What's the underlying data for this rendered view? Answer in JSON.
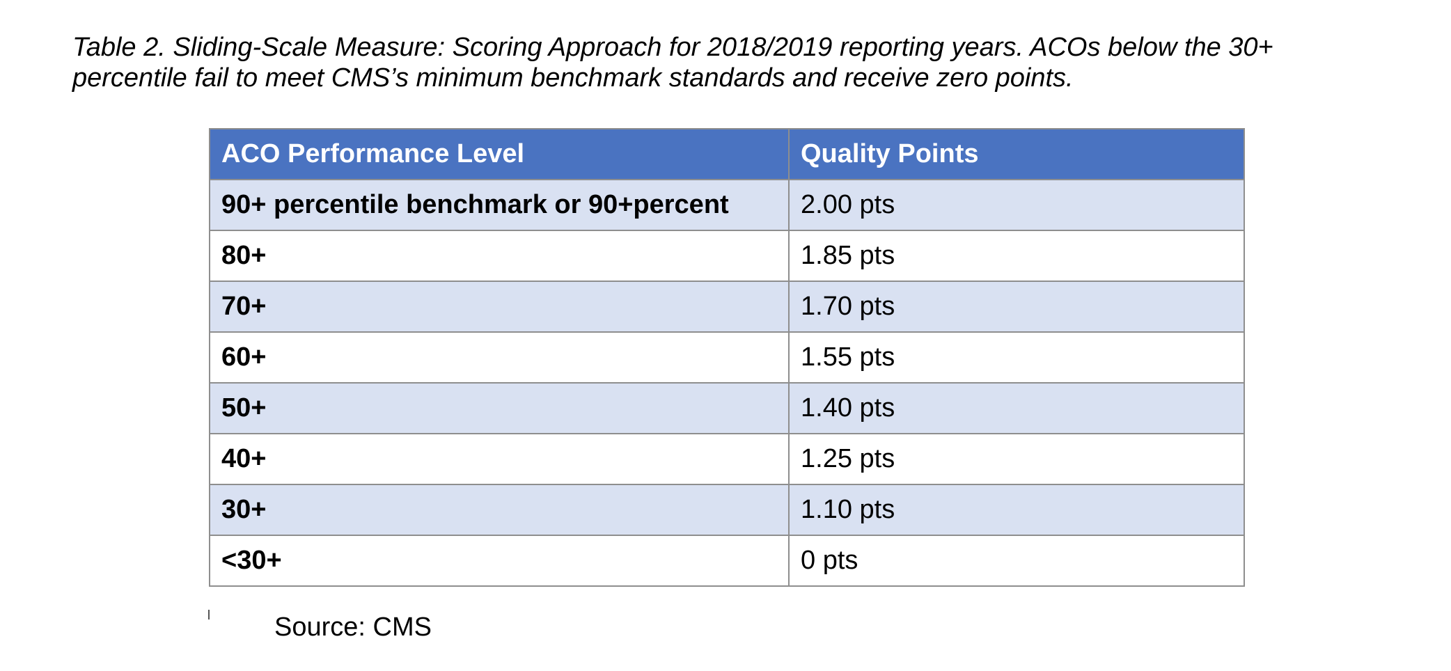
{
  "caption": "Table 2. Sliding-Scale Measure: Scoring Approach for 2018/2019 reporting years. ACOs below the 30+ percentile fail to meet CMS’s minimum benchmark standards and receive zero points.",
  "table": {
    "headers": [
      "ACO Performance Level",
      "Quality Points"
    ],
    "rows": [
      {
        "level": "90+ percentile benchmark or 90+percent",
        "points": "2.00 pts"
      },
      {
        "level": "80+",
        "points": "1.85 pts"
      },
      {
        "level": "70+",
        "points": "1.70 pts"
      },
      {
        "level": "60+",
        "points": "1.55 pts"
      },
      {
        "level": "50+",
        "points": "1.40 pts"
      },
      {
        "level": "40+",
        "points": "1.25 pts"
      },
      {
        "level": "30+",
        "points": "1.10 pts"
      },
      {
        "level": "<30+",
        "points": "0 pts"
      }
    ]
  },
  "source": "Source: CMS",
  "colors": {
    "header_bg": "#4a73c1",
    "shaded_row_bg": "#d9e1f2",
    "plain_row_bg": "#ffffff",
    "border": "#8e8e8e"
  }
}
